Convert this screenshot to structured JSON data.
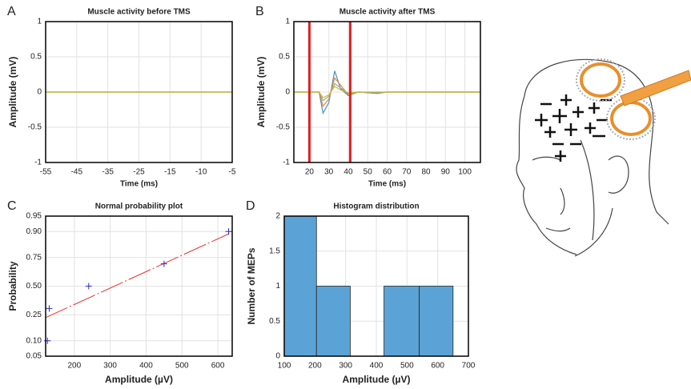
{
  "chart_data": [
    {
      "type": "line",
      "panel": "A",
      "title": "Muscle activity before TMS",
      "xlabel": "Time (ms)",
      "ylabel": "Amplitude (mV)",
      "categories": [
        "-55",
        "-45",
        "-35",
        "-25",
        "-15",
        "-10",
        "-5"
      ],
      "series": [
        {
          "color": "#4a90c8",
          "values": [
            0,
            0,
            0,
            0,
            0,
            0,
            0
          ]
        },
        {
          "color": "#e08a30",
          "values": [
            0,
            0,
            0,
            0,
            0,
            0,
            0
          ]
        },
        {
          "color": "#c8b830",
          "values": [
            0,
            0,
            0,
            0,
            0,
            0,
            0
          ]
        }
      ],
      "ylim": [
        -1,
        1
      ],
      "yticks": [
        -1,
        -0.5,
        0,
        0.5,
        1
      ],
      "grid": true
    },
    {
      "type": "line",
      "panel": "B",
      "title": "Muscle activity after TMS",
      "xlabel": "Time (ms)",
      "ylabel": "Amplitude (mV)",
      "x": [
        12,
        25,
        27,
        30,
        33,
        36,
        40,
        45,
        55,
        60,
        108
      ],
      "series": [
        {
          "color": "#4a90c8",
          "values": [
            0,
            0,
            -0.3,
            -0.15,
            0.3,
            0.05,
            -0.05,
            0,
            -0.02,
            0,
            0
          ]
        },
        {
          "color": "#e08a30",
          "values": [
            0,
            0,
            -0.2,
            -0.1,
            0.2,
            0.1,
            -0.04,
            0,
            -0.01,
            0,
            0
          ]
        },
        {
          "color": "#a0a0a0",
          "values": [
            0,
            0,
            -0.12,
            -0.06,
            0.12,
            0.06,
            -0.02,
            0,
            -0.01,
            0,
            0
          ]
        },
        {
          "color": "#c8b830",
          "values": [
            0,
            0,
            -0.08,
            -0.04,
            0.08,
            0.03,
            -0.01,
            0,
            0,
            0,
            0
          ]
        }
      ],
      "vlines": [
        20,
        41
      ],
      "vline_color": "#e02020",
      "xlim": [
        12,
        108
      ],
      "xticks": [
        20,
        30,
        40,
        50,
        60,
        70,
        80,
        90,
        100
      ],
      "ylim": [
        -1,
        1
      ],
      "yticks": [
        -1,
        -0.5,
        0,
        0.5,
        1
      ],
      "grid": true
    },
    {
      "type": "scatter",
      "panel": "C",
      "title": "Normal probability plot",
      "xlabel": "Amplitude (µV)",
      "ylabel": "Probability",
      "x": [
        125,
        130,
        240,
        450,
        630
      ],
      "values": [
        0.1,
        0.3,
        0.5,
        0.7,
        0.9
      ],
      "color": "#2a2ad0",
      "fit": {
        "x": [
          120,
          630
        ],
        "values": [
          0.23,
          0.89
        ],
        "color": "#e83030"
      },
      "yscale": "probit",
      "xlim": [
        120,
        640
      ],
      "xticks": [
        200,
        300,
        400,
        500,
        600
      ],
      "ylim": [
        0.05,
        0.95
      ],
      "yticks": [
        0.05,
        {
          "value": 0.1,
          "label": "0.10"
        },
        0.25,
        {
          "value": 0.5,
          "label": "0.50"
        },
        0.75,
        {
          "value": 0.9,
          "label": "0.90"
        },
        0.95
      ],
      "grid": true
    },
    {
      "type": "histogram",
      "panel": "D",
      "title": "Histogram distribution",
      "xlabel": "Amplitude (µV)",
      "ylabel": "Number of MEPs",
      "bins": [
        100,
        205,
        315,
        425,
        540,
        650
      ],
      "counts": [
        2,
        1,
        0,
        1,
        1
      ],
      "color": "#5ba3d6",
      "xlim": [
        100,
        700
      ],
      "xticks": [
        100,
        200,
        300,
        400,
        500,
        600,
        700
      ],
      "ylim": [
        0,
        2
      ],
      "yticks": [
        0,
        0.5,
        1,
        1.5,
        2
      ],
      "grid": true
    }
  ]
}
